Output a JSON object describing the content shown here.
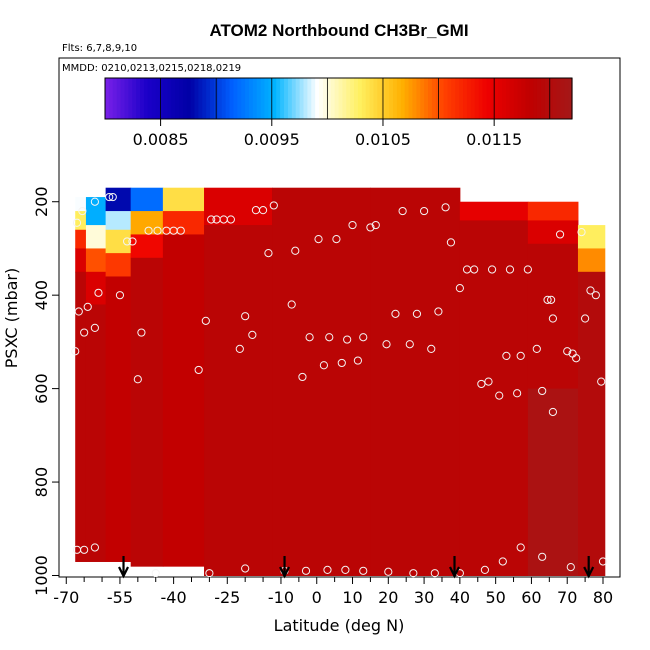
{
  "chart_data": {
    "type": "heatmap",
    "title": "ATOM2 Northbound CH3Br_GMI",
    "flights_note": "Flts: 6,7,8,9,10",
    "dates_note": "MMDD: 0210,0213,0215,0218,0219",
    "xlabel": "Latitude (deg N)",
    "ylabel": "PSXC (mbar)",
    "xlim": [
      -70,
      82
    ],
    "ylim": [
      1000,
      30
    ],
    "y_inverted": true,
    "x_ticks": [
      -70,
      -55,
      -40,
      -25,
      -10,
      0,
      10,
      20,
      30,
      40,
      50,
      60,
      70,
      80
    ],
    "x_minor_ticks": [
      -65,
      -60,
      -50,
      -45,
      -35,
      -30,
      -20,
      -15,
      -5,
      5,
      15,
      25,
      35,
      45,
      55,
      65,
      75
    ],
    "y_ticks": [
      200,
      400,
      600,
      800,
      1000
    ],
    "colorbar": {
      "min": 0.008,
      "max": 0.0122,
      "tick_values": [
        0.0085,
        0.0095,
        0.0105,
        0.0115
      ],
      "tick_labels": [
        "0.0085",
        "0.0095",
        "0.0105",
        "0.0115"
      ],
      "divisions": [
        0.008,
        0.0085,
        0.009,
        0.0095,
        0.01,
        0.0105,
        0.011,
        0.0115,
        0.012,
        0.0122
      ],
      "colors": [
        "#7a20e8",
        "#1a00c8",
        "#0000a6",
        "#0060ff",
        "#00b4ff",
        "#ffffff",
        "#fff060",
        "#ffb000",
        "#ff4000",
        "#ee0000",
        "#c00000",
        "#a41818"
      ]
    },
    "flight_markers_lat": [
      -54,
      -9,
      38.5,
      76
    ],
    "field_columns": [
      {
        "lat": -67,
        "p_top": 190,
        "p_bot": 970,
        "values": [
          {
            "p_top": 190,
            "p_bot": 220,
            "v": 0.0099
          },
          {
            "p_top": 220,
            "p_bot": 260,
            "v": 0.0103
          },
          {
            "p_top": 260,
            "p_bot": 300,
            "v": 0.0112
          },
          {
            "p_top": 300,
            "p_bot": 350,
            "v": 0.0116
          },
          {
            "p_top": 350,
            "p_bot": 970,
            "v": 0.0119
          }
        ]
      },
      {
        "lat": -62,
        "p_top": 190,
        "p_bot": 970,
        "values": [
          {
            "p_top": 190,
            "p_bot": 250,
            "v": 0.0095
          },
          {
            "p_top": 250,
            "p_bot": 300,
            "v": 0.01
          },
          {
            "p_top": 300,
            "p_bot": 350,
            "v": 0.011
          },
          {
            "p_top": 350,
            "p_bot": 420,
            "v": 0.0116
          },
          {
            "p_top": 420,
            "p_bot": 970,
            "v": 0.0119
          }
        ]
      },
      {
        "lat": -56,
        "p_top": 170,
        "p_bot": 970,
        "values": [
          {
            "p_top": 170,
            "p_bot": 220,
            "v": 0.0088
          },
          {
            "p_top": 220,
            "p_bot": 260,
            "v": 0.0098
          },
          {
            "p_top": 260,
            "p_bot": 310,
            "v": 0.0104
          },
          {
            "p_top": 310,
            "p_bot": 360,
            "v": 0.0111
          },
          {
            "p_top": 360,
            "p_bot": 970,
            "v": 0.0118
          }
        ]
      },
      {
        "lat": -48,
        "p_top": 170,
        "p_bot": 980,
        "values": [
          {
            "p_top": 170,
            "p_bot": 220,
            "v": 0.0092
          },
          {
            "p_top": 220,
            "p_bot": 270,
            "v": 0.0107
          },
          {
            "p_top": 270,
            "p_bot": 320,
            "v": 0.0114
          },
          {
            "p_top": 320,
            "p_bot": 980,
            "v": 0.0119
          }
        ]
      },
      {
        "lat": -38,
        "p_top": 170,
        "p_bot": 980,
        "values": [
          {
            "p_top": 170,
            "p_bot": 220,
            "v": 0.0104
          },
          {
            "p_top": 220,
            "p_bot": 270,
            "v": 0.0112
          },
          {
            "p_top": 270,
            "p_bot": 980,
            "v": 0.0118
          }
        ]
      },
      {
        "lat": -25,
        "p_top": 170,
        "p_bot": 1000,
        "values": [
          {
            "p_top": 170,
            "p_bot": 250,
            "v": 0.0116
          },
          {
            "p_top": 250,
            "p_bot": 1000,
            "v": 0.0119
          }
        ]
      },
      {
        "lat": 0,
        "p_top": 170,
        "p_bot": 1000,
        "values": [
          {
            "p_top": 170,
            "p_bot": 1000,
            "v": 0.0119
          }
        ]
      },
      {
        "lat": 30,
        "p_top": 170,
        "p_bot": 1000,
        "values": [
          {
            "p_top": 170,
            "p_bot": 1000,
            "v": 0.0119
          }
        ]
      },
      {
        "lat": 50,
        "p_top": 200,
        "p_bot": 1000,
        "values": [
          {
            "p_top": 200,
            "p_bot": 240,
            "v": 0.0115
          },
          {
            "p_top": 240,
            "p_bot": 1000,
            "v": 0.0119
          }
        ]
      },
      {
        "lat": 68,
        "p_top": 200,
        "p_bot": 1000,
        "values": [
          {
            "p_top": 200,
            "p_bot": 240,
            "v": 0.0112
          },
          {
            "p_top": 240,
            "p_bot": 290,
            "v": 0.0116
          },
          {
            "p_top": 290,
            "p_bot": 600,
            "v": 0.0119
          },
          {
            "p_top": 600,
            "p_bot": 1000,
            "v": 0.0121
          }
        ]
      },
      {
        "lat": 78,
        "p_top": 250,
        "p_bot": 1000,
        "values": [
          {
            "p_top": 250,
            "p_bot": 300,
            "v": 0.0103
          },
          {
            "p_top": 300,
            "p_bot": 350,
            "v": 0.0108
          },
          {
            "p_top": 350,
            "p_bot": 1000,
            "v": 0.012
          }
        ]
      }
    ],
    "obs_points": [
      {
        "lat": -65.5,
        "p": 220
      },
      {
        "lat": -67,
        "p": 245
      },
      {
        "lat": -66.5,
        "p": 435
      },
      {
        "lat": -65,
        "p": 480
      },
      {
        "lat": -64,
        "p": 425
      },
      {
        "lat": -62,
        "p": 470
      },
      {
        "lat": -61,
        "p": 395
      },
      {
        "lat": -67.5,
        "p": 520
      },
      {
        "lat": -67,
        "p": 945
      },
      {
        "lat": -65,
        "p": 945
      },
      {
        "lat": -62,
        "p": 940
      },
      {
        "lat": -62,
        "p": 200
      },
      {
        "lat": -58,
        "p": 190
      },
      {
        "lat": -57,
        "p": 190
      },
      {
        "lat": -55,
        "p": 400
      },
      {
        "lat": -53,
        "p": 285
      },
      {
        "lat": -51.5,
        "p": 285
      },
      {
        "lat": -50,
        "p": 580
      },
      {
        "lat": -49,
        "p": 480
      },
      {
        "lat": -47,
        "p": 262
      },
      {
        "lat": -44.5,
        "p": 262
      },
      {
        "lat": -42,
        "p": 262
      },
      {
        "lat": -40,
        "p": 262
      },
      {
        "lat": -38,
        "p": 262
      },
      {
        "lat": -33,
        "p": 560
      },
      {
        "lat": -31,
        "p": 455
      },
      {
        "lat": -29.5,
        "p": 238
      },
      {
        "lat": -28,
        "p": 238
      },
      {
        "lat": -26,
        "p": 238
      },
      {
        "lat": -24,
        "p": 238
      },
      {
        "lat": -21.5,
        "p": 515
      },
      {
        "lat": -20,
        "p": 445
      },
      {
        "lat": -18,
        "p": 485
      },
      {
        "lat": -17,
        "p": 218
      },
      {
        "lat": -15,
        "p": 218
      },
      {
        "lat": -12,
        "p": 208
      },
      {
        "lat": -13.5,
        "p": 310
      },
      {
        "lat": -6,
        "p": 305
      },
      {
        "lat": -7,
        "p": 420
      },
      {
        "lat": -4,
        "p": 575
      },
      {
        "lat": -2,
        "p": 490
      },
      {
        "lat": 0.5,
        "p": 280
      },
      {
        "lat": 2,
        "p": 550
      },
      {
        "lat": 3.5,
        "p": 490
      },
      {
        "lat": 5.5,
        "p": 280
      },
      {
        "lat": 7,
        "p": 545
      },
      {
        "lat": 8.5,
        "p": 495
      },
      {
        "lat": 10,
        "p": 250
      },
      {
        "lat": 11.5,
        "p": 540
      },
      {
        "lat": 13,
        "p": 490
      },
      {
        "lat": 15,
        "p": 255
      },
      {
        "lat": 16.5,
        "p": 250
      },
      {
        "lat": 19.5,
        "p": 505
      },
      {
        "lat": 22,
        "p": 440
      },
      {
        "lat": 24,
        "p": 220
      },
      {
        "lat": 26,
        "p": 505
      },
      {
        "lat": 28,
        "p": 440
      },
      {
        "lat": 30,
        "p": 220
      },
      {
        "lat": 32,
        "p": 515
      },
      {
        "lat": 34,
        "p": 435
      },
      {
        "lat": 36,
        "p": 212
      },
      {
        "lat": 37.5,
        "p": 287
      },
      {
        "lat": 40,
        "p": 385
      },
      {
        "lat": 42,
        "p": 345
      },
      {
        "lat": 44,
        "p": 345
      },
      {
        "lat": 46,
        "p": 590
      },
      {
        "lat": 48,
        "p": 585
      },
      {
        "lat": 49,
        "p": 345
      },
      {
        "lat": 51,
        "p": 615
      },
      {
        "lat": 53,
        "p": 530
      },
      {
        "lat": 54,
        "p": 345
      },
      {
        "lat": 56,
        "p": 610
      },
      {
        "lat": 57,
        "p": 530
      },
      {
        "lat": 59,
        "p": 345
      },
      {
        "lat": 61.5,
        "p": 515
      },
      {
        "lat": 63,
        "p": 605
      },
      {
        "lat": 64.5,
        "p": 410
      },
      {
        "lat": 65.5,
        "p": 410
      },
      {
        "lat": 66,
        "p": 450
      },
      {
        "lat": 66,
        "p": 650
      },
      {
        "lat": 68,
        "p": 270
      },
      {
        "lat": 70,
        "p": 520
      },
      {
        "lat": 71.5,
        "p": 525
      },
      {
        "lat": 72.5,
        "p": 535
      },
      {
        "lat": 75,
        "p": 450
      },
      {
        "lat": 76.5,
        "p": 390
      },
      {
        "lat": 78,
        "p": 400
      },
      {
        "lat": 79.5,
        "p": 585
      },
      {
        "lat": 74,
        "p": 265
      },
      {
        "lat": -45,
        "p": 995
      },
      {
        "lat": -30,
        "p": 995
      },
      {
        "lat": -20,
        "p": 985
      },
      {
        "lat": -9,
        "p": 990
      },
      {
        "lat": -3,
        "p": 990
      },
      {
        "lat": 3,
        "p": 988
      },
      {
        "lat": 8,
        "p": 988
      },
      {
        "lat": 13,
        "p": 990
      },
      {
        "lat": 20,
        "p": 992
      },
      {
        "lat": 27,
        "p": 995
      },
      {
        "lat": 33,
        "p": 995
      },
      {
        "lat": 40,
        "p": 995
      },
      {
        "lat": 47,
        "p": 988
      },
      {
        "lat": 52,
        "p": 970
      },
      {
        "lat": 57,
        "p": 940
      },
      {
        "lat": 63,
        "p": 960
      },
      {
        "lat": 71,
        "p": 982
      },
      {
        "lat": 80,
        "p": 970
      }
    ]
  }
}
